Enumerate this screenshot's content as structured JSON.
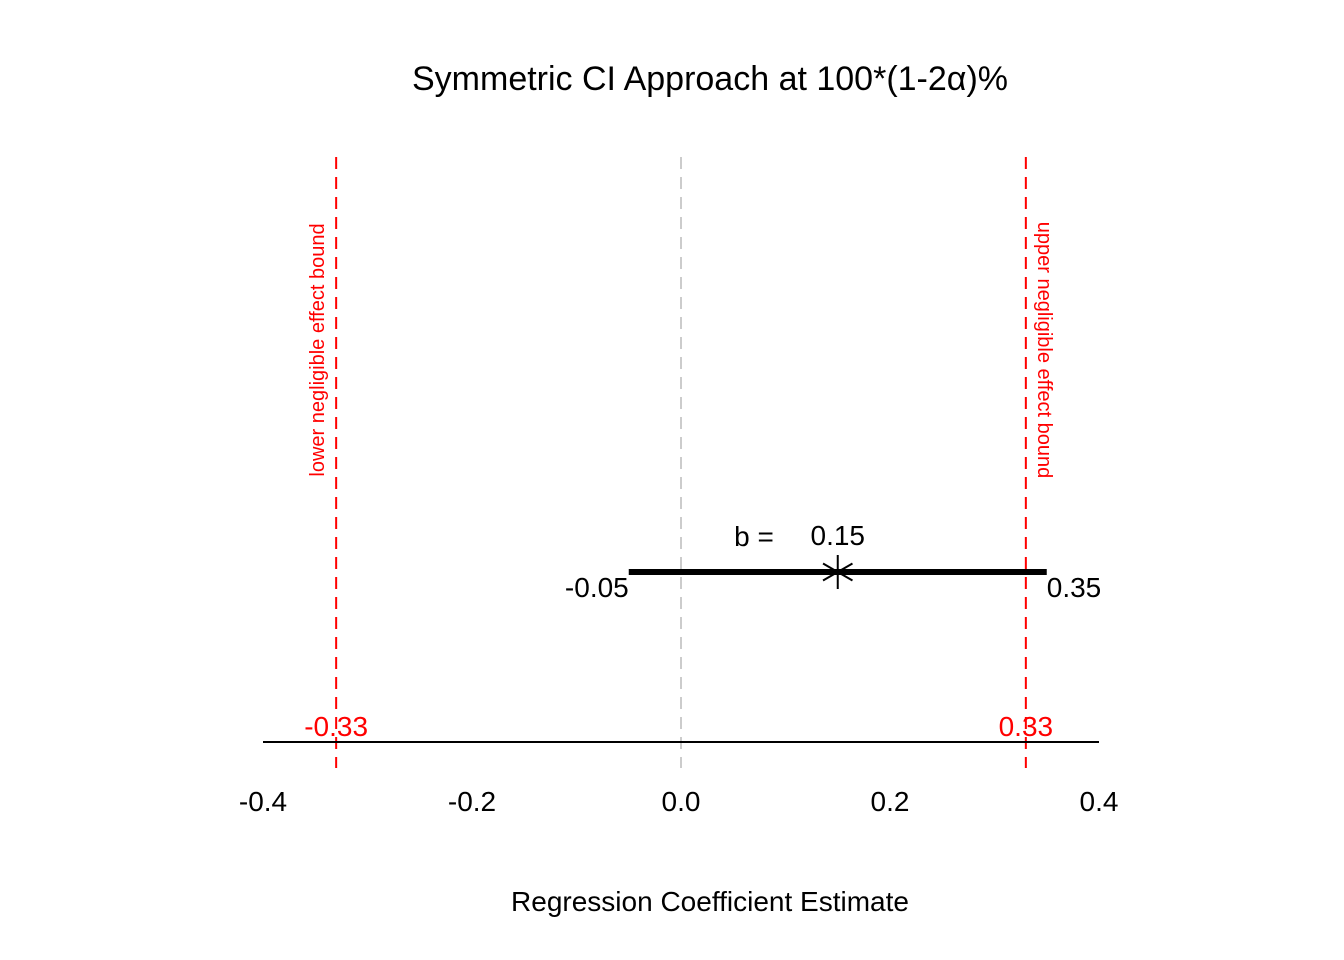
{
  "chart_data": {
    "type": "interval",
    "title": "Symmetric CI Approach at 100*(1-2α)%",
    "xlabel": "Regression Coefficient Estimate",
    "xlim": [
      -0.4,
      0.4
    ],
    "x_ticks": [
      -0.4,
      -0.2,
      0.0,
      0.2,
      0.4
    ],
    "x_tick_labels": [
      "-0.4",
      "-0.2",
      "0.0",
      "0.2",
      "0.4"
    ],
    "estimate": {
      "value": 0.15,
      "prefix_label": "b =",
      "value_label": "0.15",
      "marker": "asterisk"
    },
    "interval": {
      "lower": -0.05,
      "upper": 0.35,
      "lower_label": "-0.05",
      "upper_label": "0.35"
    },
    "reference_line": {
      "value": 0.0,
      "color": "#cccccc",
      "style": "dashed"
    },
    "bounds": [
      {
        "value": -0.33,
        "label": "-0.33",
        "annotation": "lower negligible effect bound",
        "color": "#ff0000"
      },
      {
        "value": 0.33,
        "label": "0.33",
        "annotation": "upper negligible effect bound",
        "color": "#ff0000"
      }
    ]
  }
}
